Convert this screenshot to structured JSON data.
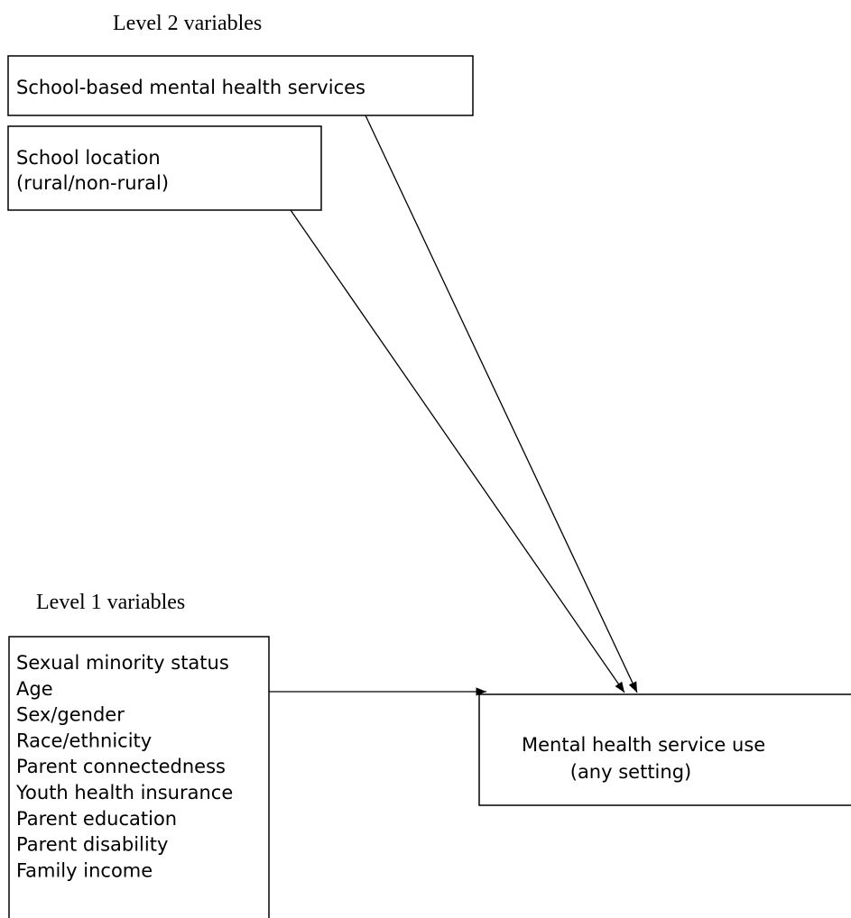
{
  "level2": {
    "heading": "Level 2 variables",
    "boxes": [
      {
        "lines": [
          "School-based mental health services"
        ]
      },
      {
        "lines": [
          "School location",
          "(rural/non-rural)"
        ]
      }
    ]
  },
  "level1": {
    "heading": "Level 1 variables",
    "variables": [
      "Sexual minority status",
      "Age",
      "Sex/gender",
      "Race/ethnicity",
      "Parent connectedness",
      "Youth health insurance",
      "Parent education",
      "Parent disability",
      "Family income"
    ]
  },
  "outcome": {
    "lines": [
      "Mental health service use",
      "(any setting)"
    ]
  }
}
